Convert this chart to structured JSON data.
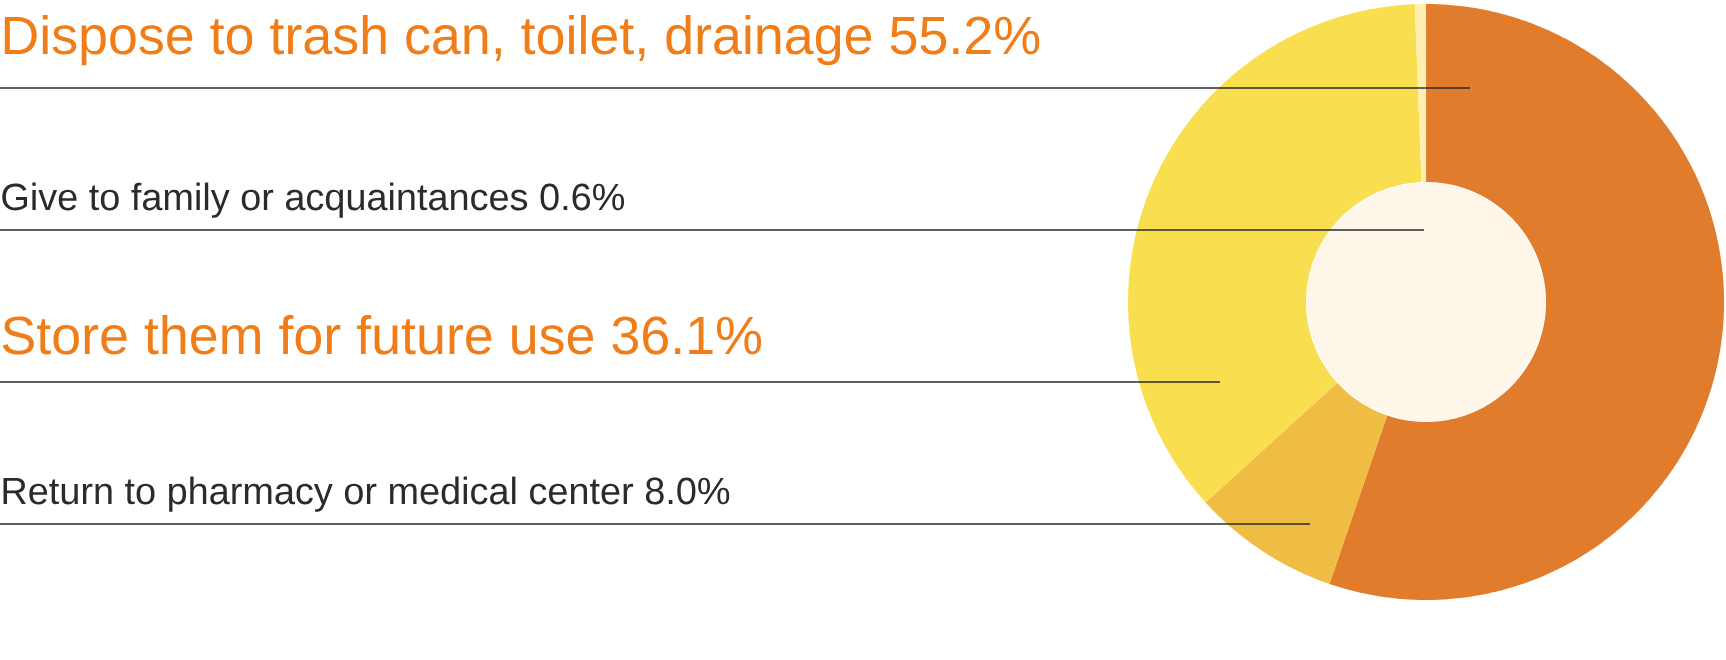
{
  "chart_data": {
    "type": "donut",
    "categories": [
      "Dispose to trash can, toilet, drainage",
      "Give to family or acquaintances",
      "Store them for future use",
      "Return to pharmacy or medical center"
    ],
    "values": [
      55.2,
      0.6,
      36.1,
      8.0
    ],
    "value_labels": [
      "55.2%",
      "0.6%",
      "36.1%",
      "8.0%"
    ],
    "colors": [
      "#e07c2c",
      "#fdf0b0",
      "#f9df4f",
      "#f0bd44"
    ]
  }
}
